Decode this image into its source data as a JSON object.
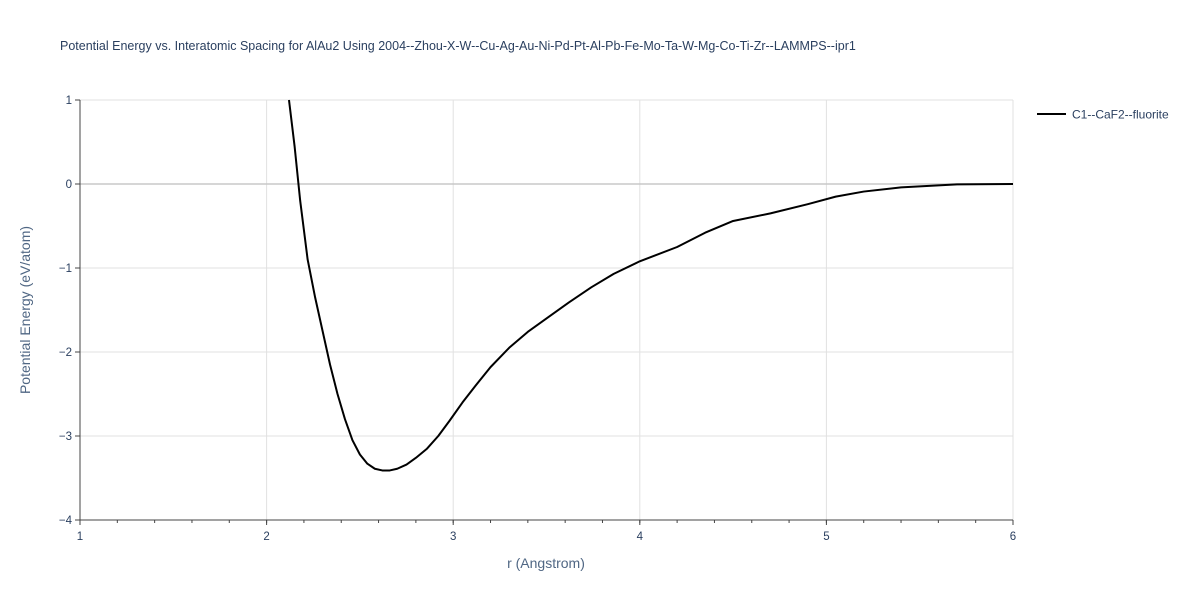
{
  "chart_data": {
    "type": "line",
    "title": "Potential Energy vs. Interatomic Spacing for AlAu2 Using 2004--Zhou-X-W--Cu-Ag-Au-Ni-Pd-Pt-Al-Pb-Fe-Mo-Ta-W-Mg-Co-Ti-Zr--LAMMPS--ipr1",
    "xlabel": "r (Angstrom)",
    "ylabel": "Potential Energy (eV/atom)",
    "xlim": [
      1,
      6
    ],
    "ylim": [
      -4,
      1
    ],
    "x_ticks": [
      "1",
      "2",
      "3",
      "4",
      "5",
      "6"
    ],
    "y_ticks": [
      "1",
      "0",
      "−1",
      "−2",
      "−3",
      "−4"
    ],
    "grid": true,
    "legend_position": "top-right",
    "series": [
      {
        "name": "C1--CaF2--fluorite",
        "color": "#000000",
        "x": [
          2.12,
          2.15,
          2.18,
          2.22,
          2.26,
          2.3,
          2.34,
          2.38,
          2.42,
          2.46,
          2.5,
          2.54,
          2.58,
          2.62,
          2.66,
          2.7,
          2.75,
          2.8,
          2.86,
          2.92,
          2.98,
          3.05,
          3.12,
          3.2,
          3.3,
          3.4,
          3.5,
          3.62,
          3.74,
          3.86,
          4.0,
          4.2,
          4.35,
          4.5,
          4.7,
          4.9,
          5.05,
          5.2,
          5.4,
          5.7,
          6.0
        ],
        "y": [
          1.0,
          0.45,
          -0.2,
          -0.9,
          -1.35,
          -1.75,
          -2.15,
          -2.5,
          -2.8,
          -3.05,
          -3.22,
          -3.33,
          -3.39,
          -3.41,
          -3.41,
          -3.39,
          -3.34,
          -3.26,
          -3.15,
          -3.0,
          -2.82,
          -2.6,
          -2.4,
          -2.18,
          -1.95,
          -1.76,
          -1.6,
          -1.41,
          -1.23,
          -1.07,
          -0.92,
          -0.75,
          -0.58,
          -0.44,
          -0.35,
          -0.24,
          -0.15,
          -0.09,
          -0.04,
          -0.005,
          0.0
        ]
      }
    ]
  }
}
